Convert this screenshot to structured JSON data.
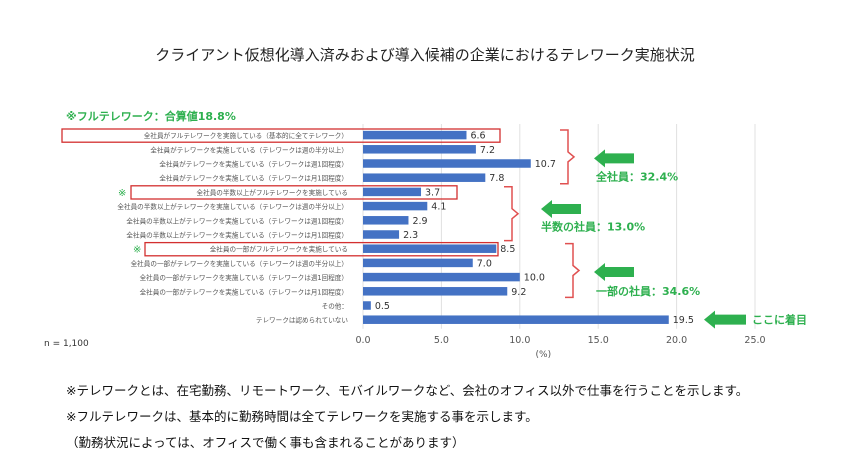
{
  "page": {
    "title": "クライアント仮想化導入済みおよび導入候補の企業におけるテレワーク実施状況",
    "sample_size": "n = 1,100",
    "notes": [
      "※テレワークとは、在宅勤務、リモートワーク、モバイルワークなど、会社のオフィス以外で仕事を行うことを示します。",
      "※フルテレワークは、基本的に勤務時間は全てテレワークを実施する事を示します。",
      "（勤務状況によっては、オフィスで働く事も含まれることがあります）"
    ]
  },
  "annotations": {
    "full_telework": "※フルテレワーク：合算値18.8%",
    "star1": "※",
    "star2": "※",
    "all_staff": "全社員：32.4%",
    "half_staff": "半数の社員：13.0%",
    "some_staff": "一部の社員：34.6%",
    "focus": "ここに着目"
  },
  "colors": {
    "bar": "#4472c4",
    "highlight_box": "#d32f2f",
    "bracket": "#e05050",
    "arrow": "#2eb04f",
    "annotation_text": "#2eb04f",
    "grid": "#e0e0e0"
  },
  "chart_data": {
    "type": "bar",
    "orientation": "horizontal",
    "xlabel": "(%)",
    "xlim": [
      0,
      25
    ],
    "xticks": [
      "0.0",
      "5.0",
      "10.0",
      "15.0",
      "20.0",
      "25.0"
    ],
    "grid": true,
    "legend": "none",
    "categories": [
      "全社員がフルテレワークを実施している（基本的に全てテレワーク）",
      "全社員がテレワークを実施している（テレワークは週の半分以上）",
      "全社員がテレワークを実施している（テレワークは週1回程度）",
      "全社員がテレワークを実施している（テレワークは月1回程度）",
      "全社員の半数以上がフルテレワークを実施している",
      "全社員の半数以上がテレワークを実施している（テレワークは週の半分以上）",
      "全社員の半数以上がテレワークを実施している（テレワークは週1回程度）",
      "全社員の半数以上がテレワークを実施している（テレワークは月1回程度）",
      "全社員の一部がフルテレワークを実施している",
      "全社員の一部がテレワークを実施している（テレワークは週の半分以上）",
      "全社員の一部がテレワークを実施している（テレワークは週1回程度）",
      "全社員の一部がテレワークを実施している（テレワークは月1回程度）",
      "その他：",
      "テレワークは認められていない"
    ],
    "values": [
      6.6,
      7.2,
      10.7,
      7.8,
      3.7,
      4.1,
      2.9,
      2.3,
      8.5,
      7.0,
      10.0,
      9.2,
      0.5,
      19.5
    ],
    "value_labels": [
      "6.6",
      "7.2",
      "10.7",
      "7.8",
      "3.7",
      "4.1",
      "2.9",
      "2.3",
      "8.5",
      "7.0",
      "10.0",
      "9.2",
      "0.5",
      "19.5"
    ]
  }
}
